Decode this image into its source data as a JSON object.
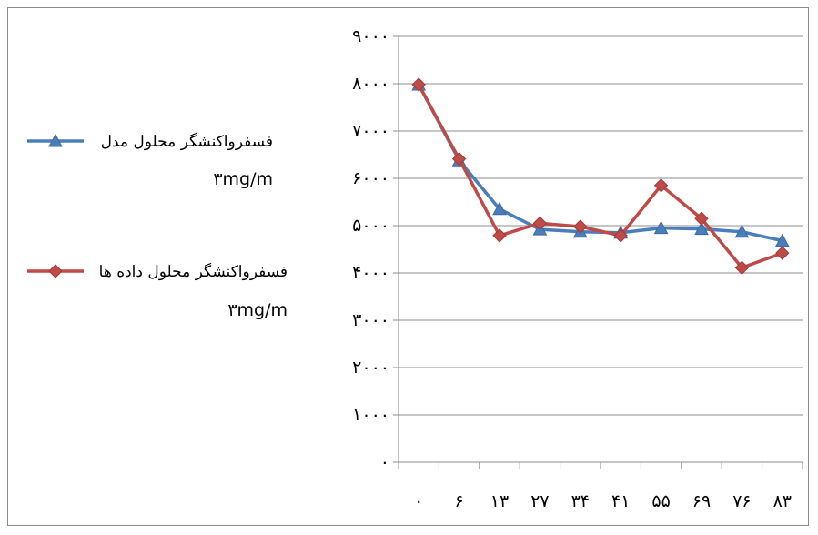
{
  "chart_data": {
    "type": "line",
    "categories": [
      "٠",
      "۶",
      "١٣",
      "٢٧",
      "٣۴",
      "۴١",
      "۵۵",
      "۶٩",
      "٧۶",
      "٨٣"
    ],
    "ylim": [
      0,
      9000
    ],
    "yticks": [
      0,
      1000,
      2000,
      3000,
      4000,
      5000,
      6000,
      7000,
      8000,
      9000
    ],
    "ytick_labels": [
      "٠",
      "١٠٠٠",
      "٢٠٠٠",
      "٣٠٠٠",
      "۴٠٠٠",
      "۵٠٠٠",
      "۶٠٠٠",
      "٧٠٠٠",
      "٨٠٠٠",
      "٩٠٠٠"
    ],
    "grid": true,
    "legend_position": "left",
    "series": [
      {
        "name": "فسفرواکنشگر محلول مدل",
        "unit": "۳mg/m",
        "color": "#4a7ebb",
        "marker": "triangle",
        "values": [
          7980,
          6380,
          5350,
          4920,
          4870,
          4850,
          4950,
          4930,
          4870,
          4680
        ]
      },
      {
        "name": "فسفرواکنشگر محلول داده ها",
        "unit": "۳mg/m",
        "color": "#be4b48",
        "marker": "diamond",
        "values": [
          7980,
          6410,
          4790,
          5050,
          4980,
          4790,
          5850,
          5150,
          4110,
          4420
        ]
      }
    ]
  }
}
